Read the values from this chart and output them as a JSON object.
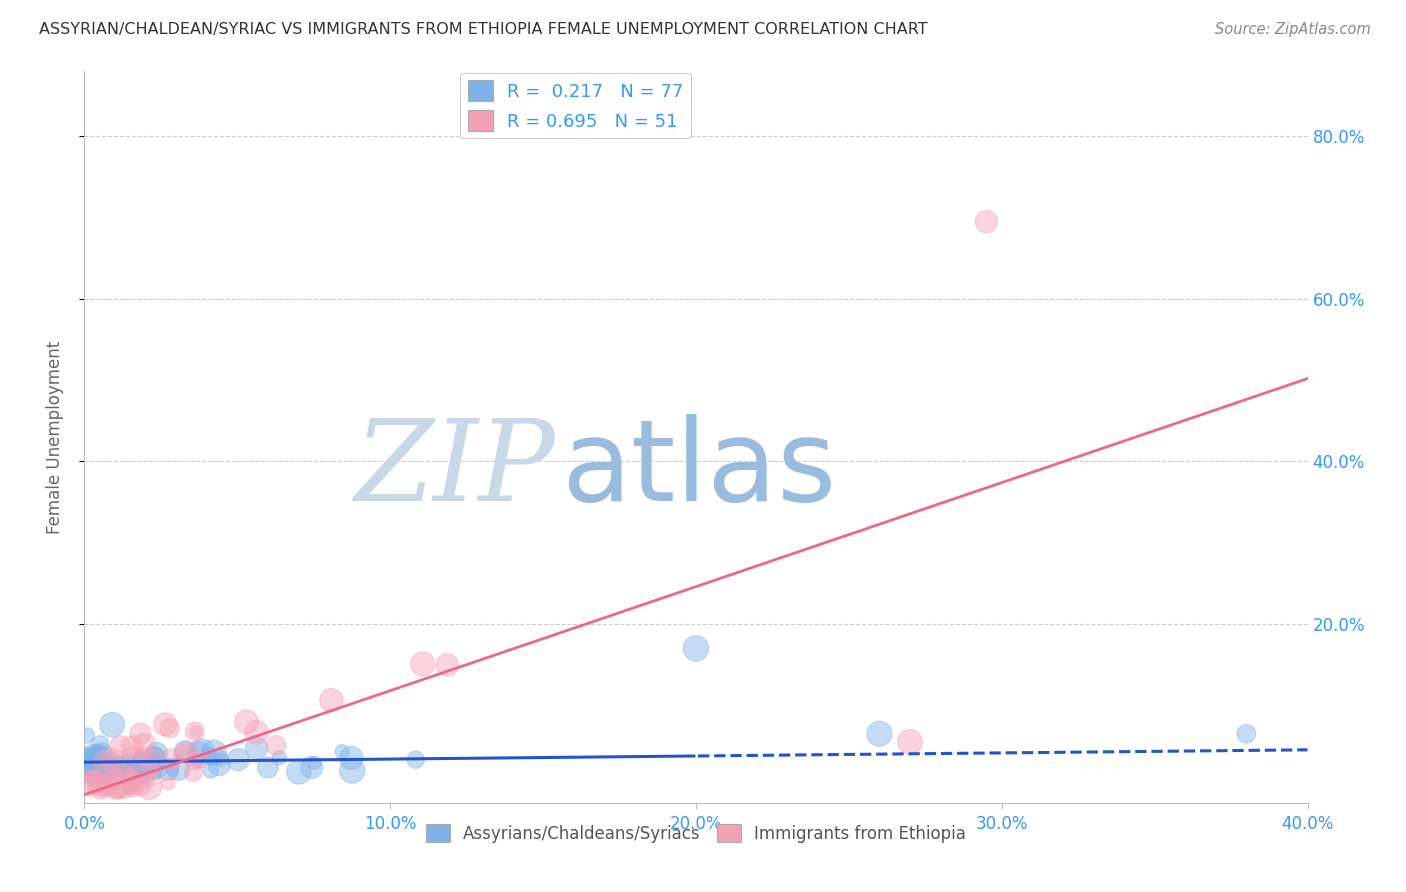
{
  "title": "ASSYRIAN/CHALDEAN/SYRIAC VS IMMIGRANTS FROM ETHIOPIA FEMALE UNEMPLOYMENT CORRELATION CHART",
  "source": "Source: ZipAtlas.com",
  "ylabel": "Female Unemployment",
  "ytick_labels": [
    "80.0%",
    "60.0%",
    "40.0%",
    "20.0%"
  ],
  "ytick_values": [
    0.8,
    0.6,
    0.4,
    0.2
  ],
  "xlim": [
    0.0,
    0.4
  ],
  "ylim": [
    -0.02,
    0.88
  ],
  "legend_r1": "R =  0.217",
  "legend_n1": "N = 77",
  "legend_r2": "R = 0.695",
  "legend_n2": "N = 51",
  "color_blue": "#7EB1E8",
  "color_pink": "#F4A0B5",
  "color_line_blue": "#2255CC",
  "color_line_pink": "#EE6688",
  "color_axis_labels": "#3399FF",
  "color_title": "#333333",
  "color_watermark_zip": "#C8D8E8",
  "color_watermark_atlas": "#99BBDD",
  "watermark_zip": "ZIP",
  "watermark_atlas": "atlas",
  "legend_label_blue": "Assyrians/Chaldeans/Syriacs",
  "legend_label_pink": "Immigrants from Ethiopia",
  "blue_N": 77,
  "pink_N": 51,
  "seed_blue": 42,
  "seed_pink": 123,
  "grid_color": "#CCCCCC",
  "background_color": "#FFFFFF",
  "blue_line_split": 0.2,
  "blue_slope": 0.038,
  "blue_intercept": 0.03,
  "pink_slope": 1.28,
  "pink_intercept": -0.01
}
